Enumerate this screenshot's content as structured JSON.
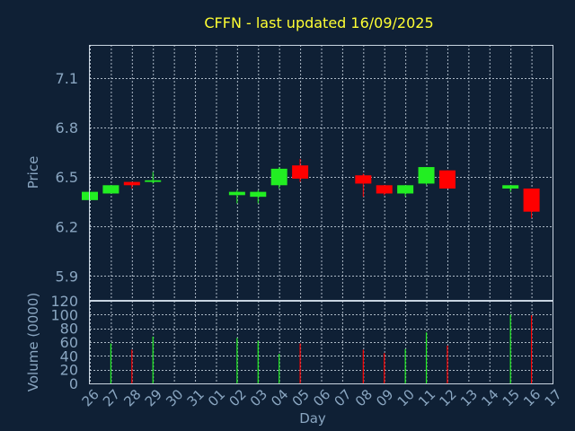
{
  "chart_data": {
    "title": "CFFN - last updated 16/09/2025",
    "type": "candlestick",
    "xlabel": "Day",
    "x_ticks": [
      "26",
      "27",
      "28",
      "29",
      "30",
      "31",
      "01",
      "02",
      "03",
      "04",
      "05",
      "06",
      "07",
      "08",
      "09",
      "10",
      "11",
      "12",
      "13",
      "14",
      "15",
      "16",
      "17"
    ],
    "colors": {
      "up": "#22ee22",
      "down": "#ff0000",
      "background": "#0f2035",
      "title": "#ffff33",
      "axis_text": "#8aa6c1",
      "grid": "#c8d4e0"
    },
    "price": {
      "ylabel": "Price",
      "ylim": [
        5.75,
        7.3
      ],
      "y_ticks": [
        5.9,
        6.2,
        6.5,
        6.8,
        7.1
      ],
      "y_tick_labels": [
        "5.9",
        "6.2",
        "6.5",
        "6.8",
        "7.1"
      ],
      "candles": [
        {
          "day": "26",
          "open": 6.36,
          "high": 6.41,
          "low": 6.36,
          "close": 6.41
        },
        {
          "day": "27",
          "open": 6.4,
          "high": 6.45,
          "low": 6.4,
          "close": 6.45
        },
        {
          "day": "28",
          "open": 6.47,
          "high": 6.47,
          "low": 6.43,
          "close": 6.45
        },
        {
          "day": "29",
          "open": 6.47,
          "high": 6.53,
          "low": 6.46,
          "close": 6.48
        },
        {
          "day": "02",
          "open": 6.39,
          "high": 6.42,
          "low": 6.34,
          "close": 6.41
        },
        {
          "day": "03",
          "open": 6.38,
          "high": 6.42,
          "low": 6.34,
          "close": 6.41
        },
        {
          "day": "04",
          "open": 6.45,
          "high": 6.56,
          "low": 6.43,
          "close": 6.55
        },
        {
          "day": "05",
          "open": 6.57,
          "high": 6.61,
          "low": 6.47,
          "close": 6.49
        },
        {
          "day": "08",
          "open": 6.51,
          "high": 6.52,
          "low": 6.38,
          "close": 6.46
        },
        {
          "day": "09",
          "open": 6.45,
          "high": 6.45,
          "low": 6.39,
          "close": 6.4
        },
        {
          "day": "10",
          "open": 6.4,
          "high": 6.45,
          "low": 6.38,
          "close": 6.45
        },
        {
          "day": "11",
          "open": 6.46,
          "high": 6.56,
          "low": 6.45,
          "close": 6.56
        },
        {
          "day": "12",
          "open": 6.54,
          "high": 6.54,
          "low": 6.43,
          "close": 6.43
        },
        {
          "day": "15",
          "open": 6.43,
          "high": 6.45,
          "low": 6.41,
          "close": 6.45
        },
        {
          "day": "16",
          "open": 6.43,
          "high": 6.43,
          "low": 6.25,
          "close": 6.29
        }
      ]
    },
    "volume": {
      "ylabel": "Volume (0000)",
      "ylim": [
        0,
        120
      ],
      "y_ticks": [
        0,
        20,
        40,
        60,
        80,
        100,
        120
      ],
      "y_tick_labels": [
        "0",
        "20",
        "40",
        "60",
        "80",
        "100",
        "120"
      ],
      "bars": [
        {
          "day": "27",
          "value": 58,
          "direction": "up"
        },
        {
          "day": "28",
          "value": 49,
          "direction": "down"
        },
        {
          "day": "29",
          "value": 68,
          "direction": "up"
        },
        {
          "day": "02",
          "value": 66,
          "direction": "up"
        },
        {
          "day": "03",
          "value": 62,
          "direction": "up"
        },
        {
          "day": "04",
          "value": 43,
          "direction": "up"
        },
        {
          "day": "05",
          "value": 58,
          "direction": "down"
        },
        {
          "day": "08",
          "value": 49,
          "direction": "down"
        },
        {
          "day": "09",
          "value": 44,
          "direction": "down"
        },
        {
          "day": "10",
          "value": 50,
          "direction": "up"
        },
        {
          "day": "11",
          "value": 74,
          "direction": "up"
        },
        {
          "day": "12",
          "value": 55,
          "direction": "down"
        },
        {
          "day": "15",
          "value": 100,
          "direction": "up"
        },
        {
          "day": "16",
          "value": 99,
          "direction": "down"
        }
      ]
    }
  }
}
